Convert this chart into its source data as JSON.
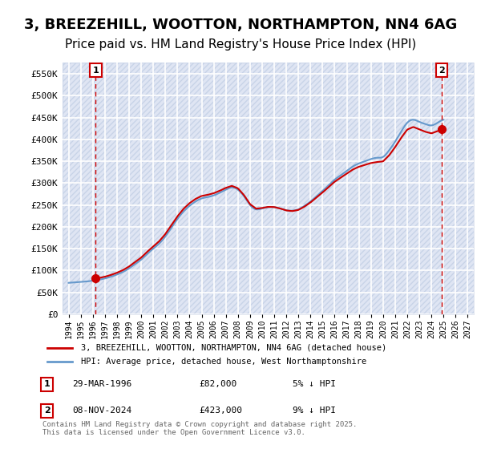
{
  "title": "3, BREEZEHILL, WOOTTON, NORTHAMPTON, NN4 6AG",
  "subtitle": "Price paid vs. HM Land Registry's House Price Index (HPI)",
  "title_fontsize": 13,
  "subtitle_fontsize": 11,
  "background_color": "#ffffff",
  "plot_bg_color": "#f0f4ff",
  "hatch_color": "#d0d8e8",
  "grid_color": "#ffffff",
  "ylim": [
    0,
    575000
  ],
  "yticks": [
    0,
    50000,
    100000,
    150000,
    200000,
    250000,
    300000,
    350000,
    400000,
    450000,
    500000,
    550000
  ],
  "ytick_labels": [
    "£0",
    "£50K",
    "£100K",
    "£150K",
    "£200K",
    "£250K",
    "£300K",
    "£350K",
    "£400K",
    "£450K",
    "£500K",
    "£550K"
  ],
  "red_color": "#cc0000",
  "blue_color": "#6699cc",
  "dashed_red": "#cc0000",
  "legend_label_red": "3, BREEZEHILL, WOOTTON, NORTHAMPTON, NN4 6AG (detached house)",
  "legend_label_blue": "HPI: Average price, detached house, West Northamptonshire",
  "point1_x": 1996.25,
  "point1_y": 82000,
  "point1_label": "1",
  "point2_x": 2024.85,
  "point2_y": 423000,
  "point2_label": "2",
  "annotation1": "1    29-MAR-1996         £82,000         5% ↓ HPI",
  "annotation2": "2    08-NOV-2024         £423,000       9% ↓ HPI",
  "copyright_text": "Contains HM Land Registry data © Crown copyright and database right 2025.\nThis data is licensed under the Open Government Licence v3.0.",
  "hpi_years": [
    1994,
    1994.5,
    1995,
    1995.5,
    1996,
    1996.5,
    1997,
    1997.5,
    1998,
    1998.5,
    1999,
    1999.5,
    2000,
    2000.5,
    2001,
    2001.5,
    2002,
    2002.5,
    2003,
    2003.5,
    2004,
    2004.5,
    2005,
    2005.5,
    2006,
    2006.5,
    2007,
    2007.5,
    2008,
    2008.5,
    2009,
    2009.5,
    2010,
    2010.5,
    2011,
    2011.5,
    2012,
    2012.5,
    2013,
    2013.5,
    2014,
    2014.5,
    2015,
    2015.5,
    2016,
    2016.5,
    2017,
    2017.5,
    2018,
    2018.5,
    2019,
    2019.5,
    2020,
    2020.5,
    2021,
    2021.5,
    2022,
    2022.5,
    2023,
    2023.5,
    2024,
    2024.5,
    2025
  ],
  "hpi_values": [
    72000,
    73000,
    74000,
    75000,
    77000,
    79000,
    82000,
    86000,
    91000,
    97000,
    105000,
    115000,
    125000,
    138000,
    150000,
    162000,
    178000,
    198000,
    218000,
    235000,
    248000,
    258000,
    265000,
    268000,
    272000,
    278000,
    285000,
    290000,
    285000,
    270000,
    250000,
    240000,
    242000,
    245000,
    245000,
    242000,
    238000,
    237000,
    240000,
    248000,
    258000,
    270000,
    282000,
    295000,
    308000,
    318000,
    328000,
    338000,
    345000,
    350000,
    355000,
    358000,
    360000,
    375000,
    395000,
    418000,
    438000,
    445000,
    440000,
    435000,
    432000,
    438000,
    445000
  ],
  "price_years": [
    1996.25,
    2024.85
  ],
  "price_values": [
    82000,
    423000
  ],
  "xlim_left": 1993.5,
  "xlim_right": 2027.5
}
